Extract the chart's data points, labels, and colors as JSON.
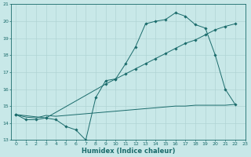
{
  "bg_color": "#c8e8e8",
  "line_color": "#1a6b6b",
  "grid_color": "#b0d4d4",
  "xlabel": "Humidex (Indice chaleur)",
  "ylim": [
    13,
    21
  ],
  "xlim": [
    -0.5,
    23
  ],
  "yticks": [
    13,
    14,
    15,
    16,
    17,
    18,
    19,
    20,
    21
  ],
  "xticks": [
    0,
    1,
    2,
    3,
    4,
    5,
    6,
    7,
    8,
    9,
    10,
    11,
    12,
    13,
    14,
    15,
    16,
    17,
    18,
    19,
    20,
    21,
    22,
    23
  ],
  "line1_x": [
    0,
    1,
    2,
    3,
    4,
    5,
    6,
    7,
    8,
    9,
    10,
    11,
    12,
    13,
    14,
    15,
    16,
    17,
    18,
    19,
    20,
    21,
    22
  ],
  "line1_y": [
    14.5,
    14.2,
    14.2,
    14.3,
    14.2,
    13.8,
    13.6,
    13.0,
    15.5,
    16.5,
    16.6,
    17.5,
    18.5,
    19.85,
    20.0,
    20.1,
    20.5,
    20.3,
    19.8,
    19.6,
    18.0,
    16.0,
    15.1
  ],
  "line2_x": [
    0,
    3,
    9,
    10,
    11,
    12,
    13,
    14,
    15,
    16,
    17,
    18,
    19,
    20,
    21,
    22
  ],
  "line2_y": [
    14.5,
    14.3,
    16.3,
    16.6,
    16.9,
    17.2,
    17.5,
    17.8,
    18.1,
    18.4,
    18.7,
    18.9,
    19.2,
    19.5,
    19.7,
    19.85
  ],
  "line3_x": [
    0,
    1,
    2,
    3,
    4,
    5,
    6,
    7,
    8,
    9,
    10,
    11,
    12,
    13,
    14,
    15,
    16,
    17,
    18,
    19,
    20,
    21,
    22
  ],
  "line3_y": [
    14.5,
    14.35,
    14.3,
    14.45,
    14.4,
    14.45,
    14.5,
    14.55,
    14.6,
    14.65,
    14.7,
    14.75,
    14.8,
    14.85,
    14.9,
    14.95,
    15.0,
    15.0,
    15.05,
    15.05,
    15.05,
    15.05,
    15.1
  ],
  "xlabel_fontsize": 6,
  "tick_fontsize": 4.5,
  "lw": 0.7,
  "ms": 1.8
}
